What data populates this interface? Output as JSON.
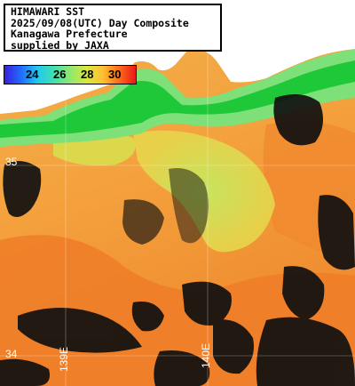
{
  "header": {
    "line1": "HIMAWARI SST",
    "line2": "2025/09/08(UTC) Day Composite",
    "line3": "Kanagawa Prefecture",
    "line4": "supplied by JAXA"
  },
  "colorbar": {
    "ticks": [
      "24",
      "26",
      "28",
      "30"
    ],
    "colors": [
      "#3a1fd8",
      "#1f6cff",
      "#22c8f0",
      "#3fe0b0",
      "#8fe870",
      "#d8e640",
      "#ffc030",
      "#ff6a18",
      "#e81818"
    ]
  },
  "grid_labels": {
    "lat_35": "35",
    "lat_34": "34",
    "lon_139": "139E",
    "lon_140": "140E"
  },
  "colors": {
    "land": "#ffffff",
    "cloud": "#0a0a0a",
    "coast_green": "#18c830",
    "coastal_water": "#8ee88a",
    "warm_water": "#f6a040",
    "hot_water": "#ee7a26"
  }
}
